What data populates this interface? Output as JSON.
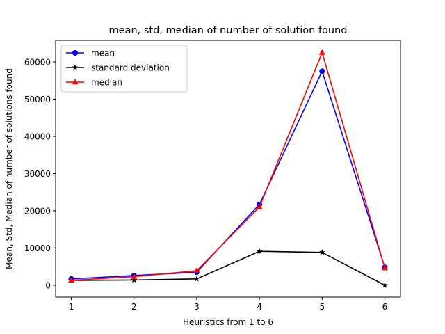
{
  "chart_data": {
    "type": "line",
    "title": "mean, std, median of number of solution found",
    "xlabel": "Heuristics from 1 to 6",
    "ylabel": "Mean, Std, Median of number of solutions found",
    "x": [
      1,
      2,
      3,
      4,
      5,
      6
    ],
    "xlim": [
      0.75,
      6.25
    ],
    "ylim": [
      -3200,
      65800
    ],
    "xticks": [
      "1",
      "2",
      "3",
      "4",
      "5",
      "6"
    ],
    "yticks": [
      "0",
      "10000",
      "20000",
      "30000",
      "40000",
      "50000",
      "60000"
    ],
    "grid": false,
    "legend_position": "top-left",
    "series": [
      {
        "name": "mean",
        "color": "#0000ff",
        "marker": "circle",
        "values": [
          1700,
          2600,
          3500,
          21700,
          57500,
          4800
        ]
      },
      {
        "name": "standard deviation",
        "color": "#000000",
        "marker": "star",
        "values": [
          1300,
          1400,
          1700,
          9100,
          8800,
          0
        ]
      },
      {
        "name": "median",
        "color": "#ff0000",
        "marker": "triangle",
        "values": [
          1300,
          2300,
          3900,
          21000,
          62500,
          4600
        ]
      }
    ]
  }
}
